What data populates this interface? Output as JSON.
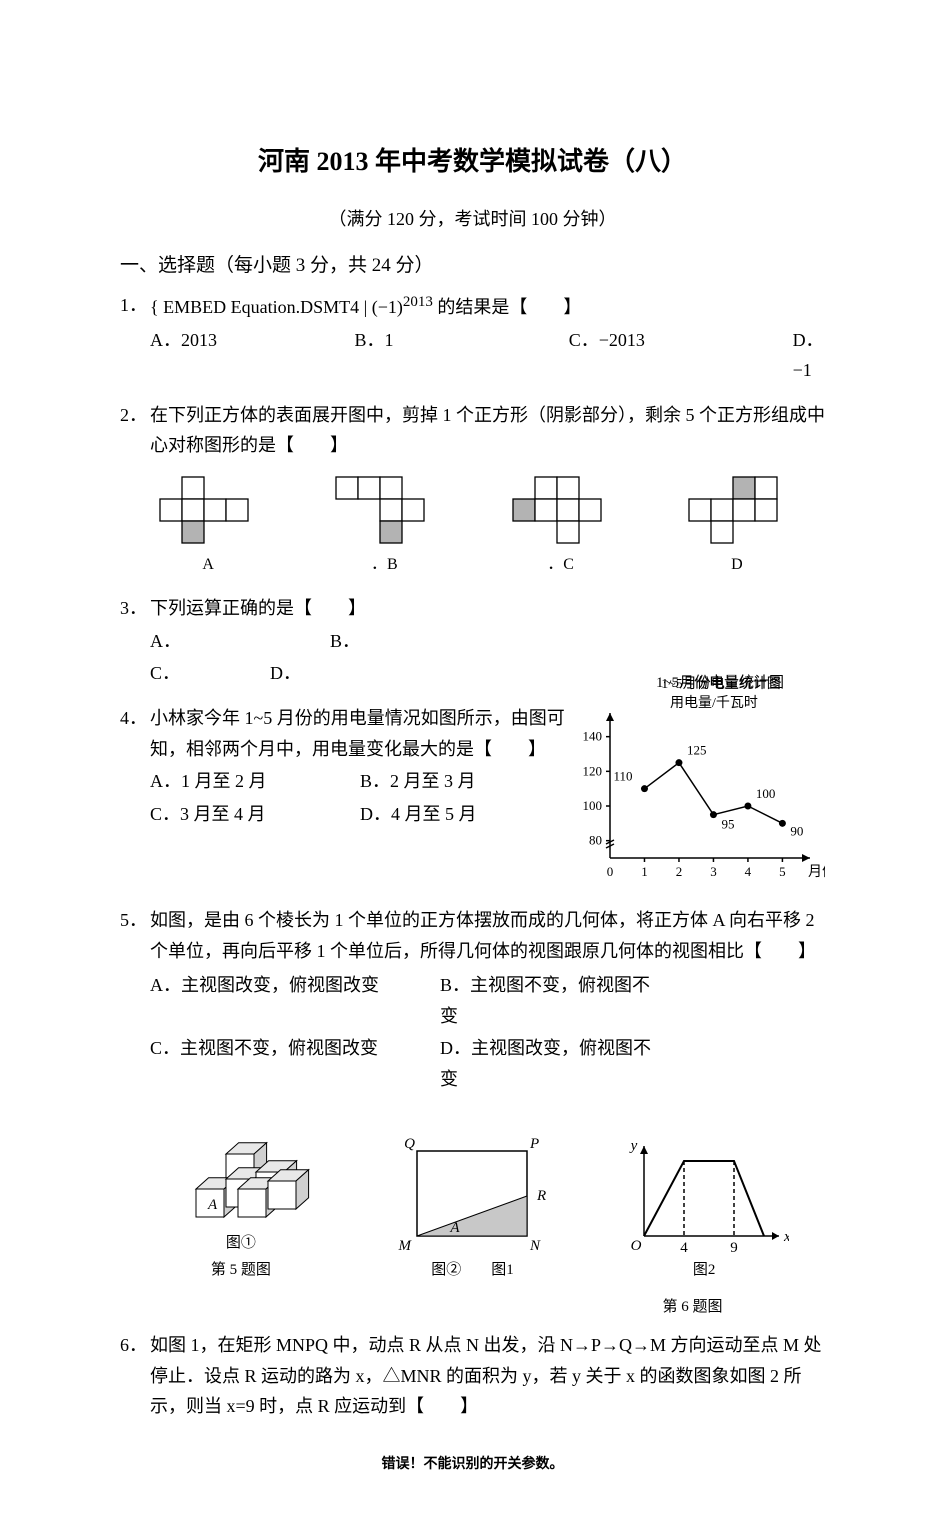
{
  "title": "河南 2013 年中考数学模拟试卷（八）",
  "subtitle": "（满分 120 分，考试时间 100 分钟）",
  "section1": "一、选择题（每小题 3 分，共 24 分）",
  "q1": {
    "num": "1．",
    "text_prefix": "{ EMBED Equation.DSMT4  |",
    "expr": "(−1)",
    "exp": "2013",
    "text_suffix": " 的结果是【　　】",
    "opts": {
      "A": "A．2013",
      "B": "B．1",
      "C": "C．−2013",
      "D": "D．−1"
    }
  },
  "q2": {
    "num": "2．",
    "text": "在下列正方体的表面展开图中，剪掉 1 个正方形（阴影部分），剩余 5 个正方形组成中心对称图形的是【　　】",
    "labels": {
      "A": "A",
      "B": "．B",
      "C": "．C",
      "D": "D"
    },
    "nets": {
      "cell": 22,
      "stroke": "#000000",
      "shaded": "#b3b3b3",
      "A": {
        "cells": [
          [
            1,
            0,
            false
          ],
          [
            0,
            1,
            false
          ],
          [
            1,
            1,
            false
          ],
          [
            2,
            1,
            false
          ],
          [
            3,
            1,
            false
          ],
          [
            1,
            2,
            true
          ]
        ]
      },
      "B": {
        "cells": [
          [
            0,
            0,
            false
          ],
          [
            1,
            0,
            false
          ],
          [
            2,
            0,
            false
          ],
          [
            2,
            1,
            false
          ],
          [
            3,
            1,
            false
          ],
          [
            2,
            2,
            true
          ]
        ]
      },
      "C": {
        "cells": [
          [
            1,
            0,
            false
          ],
          [
            2,
            0,
            false
          ],
          [
            0,
            1,
            true
          ],
          [
            1,
            1,
            false
          ],
          [
            2,
            1,
            false
          ],
          [
            3,
            1,
            false
          ],
          [
            2,
            2,
            false
          ]
        ],
        "skip_shade_extra": false
      },
      "D": {
        "cells": [
          [
            2,
            0,
            true
          ],
          [
            0,
            1,
            false
          ],
          [
            1,
            1,
            false
          ],
          [
            2,
            1,
            false
          ],
          [
            3,
            1,
            false
          ],
          [
            1,
            2,
            false
          ]
        ]
      }
    },
    "netsC": {
      "cells": [
        [
          1,
          0,
          false
        ],
        [
          2,
          0,
          false
        ],
        [
          0,
          1,
          true
        ],
        [
          1,
          1,
          false
        ],
        [
          2,
          1,
          false
        ],
        [
          3,
          1,
          false
        ],
        [
          2,
          2,
          false
        ]
      ]
    }
  },
  "q3": {
    "num": "3．",
    "text": "下列运算正确的是【　　】",
    "opts": {
      "A": "A．",
      "B": "B．",
      "C": "C．",
      "D": "D．"
    }
  },
  "q4": {
    "num": "4．",
    "text": "小林家今年 1~5 月份的用电量情况如图所示，由图可知，相邻两个月中，用电量变化最大的是【　　】",
    "opts": {
      "A": "A．1 月至 2 月",
      "B": "B．2 月至 3 月",
      "C": "C．3 月至 4 月",
      "D": "D．4 月至 5 月"
    },
    "chart": {
      "title": "1~5月份电量统计图",
      "ylabel": "用电量/千瓦时",
      "xlabel": "月份",
      "xticks": [
        "0",
        "1",
        "2",
        "3",
        "4",
        "5"
      ],
      "yticks": [
        "80",
        "100",
        "120",
        "140"
      ],
      "data_x": [
        1,
        2,
        3,
        4,
        5
      ],
      "data_y": [
        110,
        125,
        95,
        100,
        90
      ],
      "point_labels": [
        "110",
        "125",
        "95",
        "100",
        "90"
      ],
      "label_dy": [
        -8,
        -8,
        14,
        -8,
        12
      ],
      "stroke": "#000000",
      "bg": "#ffffff",
      "font_size": 13
    }
  },
  "q5": {
    "num": "5．",
    "text": "如图，是由 6 个棱长为 1 个单位的正方体摆放而成的几何体，将正方体 A 向右平移 2 个单位，再向后平移 1 个单位后，所得几何体的视图跟原几何体的视图相比【　　】",
    "opts": {
      "A": "A．主视图改变，俯视图改变",
      "B": "B．主视图不变，俯视图不变",
      "C": "C．主视图不变，俯视图改变",
      "D": "D．主视图改变，俯视图不变"
    },
    "fig_label": "第 5 题图",
    "fig_sub": "图①",
    "cube_label": "A"
  },
  "q6": {
    "num": "6．",
    "text_1": "如图 1，在矩形 MNPQ 中，动点 R 从点 N 出发，沿 N→P→Q→M 方向运动至点 M 处停止．设点 R 运动的路为 x，△MNR 的面积为 y，若 y 关于 x 的函数图象如图 2 所示，则当 x=9 时，点 R 应运动到【　　】",
    "fig2_label": "图②",
    "fig1_label": "图1",
    "fig2b_label": "图2",
    "caption": "第 6 题图",
    "rect": {
      "Q": "Q",
      "P": "P",
      "M": "M",
      "N": "N",
      "A": "A",
      "R": "R"
    },
    "graph": {
      "O": "O",
      "x": "x",
      "y": "y",
      "t1": "4",
      "t2": "9"
    }
  },
  "footer": "错误！不能识别的开关参数。"
}
